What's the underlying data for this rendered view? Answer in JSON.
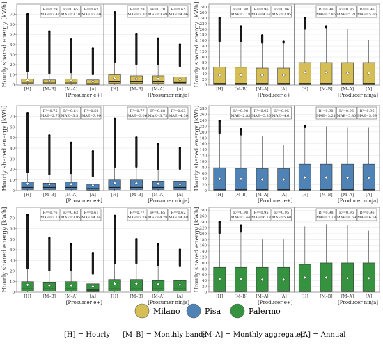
{
  "colors": {
    "Milano": "#D4BE55",
    "Pisa": "#4F82B5",
    "Palermo": "#35933F",
    "panel_border": "#888888",
    "grid": "#E3E3E3",
    "text": "#333333"
  },
  "ylabel": "Hourly shared energy [kWh]",
  "xticks": [
    "[H]",
    "[M–B]",
    "[M–A]",
    "[A]"
  ],
  "legend": {
    "cities": [
      "Milano",
      "Pisa",
      "Palermo"
    ],
    "abbreviations": [
      "[H] = Hourly",
      "[M–B] = Monthly bands",
      "[M–A] = Monthly aggregated",
      "[A] = Annual"
    ]
  },
  "chart_data": [
    {
      "type": "box",
      "city": "Milano",
      "group": "Prosumer",
      "ylim": [
        0,
        80
      ],
      "yticks": [
        0,
        10,
        20,
        30,
        40,
        50,
        60,
        70
      ],
      "panels": [
        {
          "label": "[Prosumer e+]",
          "stats": [
            [
              "R²=0.79",
              "MAE=2.42"
            ],
            [
              "R²=0.65",
              "MAE=3.10"
            ],
            [
              "R²=0.62",
              "MAE=3.60"
            ]
          ],
          "boxes": [
            {
              "q1": 1,
              "med": 2,
              "q3": 6,
              "whi": 13,
              "mean": 4.5,
              "max": 70
            },
            {
              "q1": 1,
              "med": 2,
              "q3": 5,
              "whi": 11,
              "mean": 4.0,
              "max": 53
            },
            {
              "q1": 1,
              "med": 2,
              "q3": 6,
              "whi": 12,
              "mean": 4.3,
              "max": 45
            },
            {
              "q1": 0.5,
              "med": 1.5,
              "q3": 5,
              "whi": 10,
              "mean": 3.5,
              "max": 36
            }
          ]
        },
        {
          "label": "[Prosumer ninja]",
          "stats": [
            [
              "R²=0.79",
              "MAE=2.83"
            ],
            [
              "R²=0.70",
              "MAE=3.49"
            ],
            [
              "R²=0.65",
              "MAE=4.06"
            ]
          ],
          "boxes": [
            {
              "q1": 1,
              "med": 3,
              "q3": 10,
              "whi": 22,
              "mean": 6.5,
              "max": 72
            },
            {
              "q1": 1,
              "med": 3,
              "q3": 9,
              "whi": 20,
              "mean": 6.0,
              "max": 50
            },
            {
              "q1": 1,
              "med": 3,
              "q3": 9,
              "whi": 20,
              "mean": 6.0,
              "max": 46
            },
            {
              "q1": 1,
              "med": 2.5,
              "q3": 8,
              "whi": 18,
              "mean": 5.5,
              "max": 40
            }
          ]
        }
      ]
    },
    {
      "type": "box",
      "city": "Milano",
      "group": "Producer",
      "ylim": [
        0,
        290
      ],
      "yticks": [
        0,
        20,
        40,
        60,
        80,
        100,
        120,
        140,
        160,
        180,
        200,
        220,
        240,
        260,
        280
      ],
      "panels": [
        {
          "label": "[Producer e+]",
          "stats": [
            [
              "R²=0.98",
              "MAE=2.18"
            ],
            [
              "R²=0.96",
              "MAE=4.67"
            ],
            [
              "R²=0.96",
              "MAE=3.95"
            ]
          ],
          "boxes": [
            {
              "q1": 2,
              "med": 3,
              "q3": 64,
              "whi": 155,
              "mean": 35,
              "max": 240
            },
            {
              "q1": 2,
              "med": 3,
              "q3": 63,
              "whi": 155,
              "mean": 36,
              "max": 210
            },
            {
              "q1": 2,
              "med": 3,
              "q3": 60,
              "whi": 150,
              "mean": 35,
              "max": 178
            },
            {
              "q1": 2,
              "med": 3,
              "q3": 60,
              "whi": 150,
              "mean": 35,
              "max": 155
            }
          ]
        },
        {
          "label": "[Producer ninja]",
          "stats": [
            [
              "R²=0.98",
              "MAE=2.86"
            ],
            [
              "R²=0.96",
              "MAE=5.21"
            ],
            [
              "R²=0.96",
              "MAE=5.06"
            ]
          ],
          "boxes": [
            {
              "q1": 2,
              "med": 3,
              "q3": 80,
              "whi": 200,
              "mean": 45,
              "max": 240
            },
            {
              "q1": 2,
              "med": 3,
              "q3": 80,
              "whi": 205,
              "mean": 45,
              "max": 210
            },
            {
              "q1": 2,
              "med": 3,
              "q3": 80,
              "whi": 200,
              "mean": 42,
              "max": 200
            },
            {
              "q1": 2,
              "med": 3,
              "q3": 80,
              "whi": 160,
              "mean": 42,
              "max": 160
            }
          ]
        }
      ]
    },
    {
      "type": "box",
      "city": "Pisa",
      "group": "Prosumer",
      "ylim": [
        0,
        80
      ],
      "yticks": [
        0,
        10,
        20,
        30,
        40,
        50,
        60,
        70
      ],
      "panels": [
        {
          "label": "[Prosumer e+]",
          "stats": [
            [
              "R²=0.75",
              "MAE=2.76"
            ],
            [
              "R²=0.64",
              "MAE=3.51"
            ],
            [
              "R²=0.62",
              "MAE=3.90"
            ]
          ],
          "boxes": [
            {
              "q1": 1,
              "med": 3,
              "q3": 8,
              "whi": 17,
              "mean": 6.5,
              "max": 73
            },
            {
              "q1": 1,
              "med": 3,
              "q3": 7,
              "whi": 15,
              "mean": 6.0,
              "max": 52
            },
            {
              "q1": 1,
              "med": 3,
              "q3": 8,
              "whi": 16,
              "mean": 6.0,
              "max": 45
            },
            {
              "q1": 0.5,
              "med": 2,
              "q3": 6,
              "whi": 13,
              "mean": 5.0,
              "max": 37
            }
          ]
        },
        {
          "label": "[Prosumer ninja]",
          "stats": [
            [
              "R²=0.77",
              "MAE=3.06"
            ],
            [
              "R²=0.68",
              "MAE=3.73"
            ],
            [
              "R²=0.63",
              "MAE=4.30"
            ]
          ],
          "boxes": [
            {
              "q1": 1,
              "med": 3,
              "q3": 10,
              "whi": 22,
              "mean": 7.0,
              "max": 68
            },
            {
              "q1": 1,
              "med": 3,
              "q3": 10,
              "whi": 22,
              "mean": 7.0,
              "max": 50
            },
            {
              "q1": 1,
              "med": 3,
              "q3": 9,
              "whi": 20,
              "mean": 6.5,
              "max": 44
            },
            {
              "q1": 1,
              "med": 3,
              "q3": 9,
              "whi": 20,
              "mean": 6.0,
              "max": 40
            }
          ]
        }
      ]
    },
    {
      "type": "box",
      "city": "Pisa",
      "group": "Producer",
      "ylim": [
        0,
        290
      ],
      "yticks": [
        0,
        20,
        40,
        60,
        80,
        100,
        120,
        140,
        160,
        180,
        200,
        220,
        240,
        260,
        280
      ],
      "panels": [
        {
          "label": "[Producer e+]",
          "stats": [
            [
              "R²=0.98",
              "MAE=2.83"
            ],
            [
              "R²=0.95",
              "MAE=5.36"
            ],
            [
              "R²=0.95",
              "MAE=4.61"
            ]
          ],
          "boxes": [
            {
              "q1": 2,
              "med": 3,
              "q3": 78,
              "whi": 195,
              "mean": 40,
              "max": 238
            },
            {
              "q1": 2,
              "med": 3,
              "q3": 76,
              "whi": 190,
              "mean": 40,
              "max": 210
            },
            {
              "q1": 2,
              "med": 3,
              "q3": 75,
              "whi": 185,
              "mean": 38,
              "max": 185
            },
            {
              "q1": 2,
              "med": 3,
              "q3": 75,
              "whi": 155,
              "mean": 38,
              "max": 155
            }
          ]
        },
        {
          "label": "[Producer ninja]",
          "stats": [
            [
              "R²=0.98",
              "MAE=3.21"
            ],
            [
              "R²=0.96",
              "MAE=5.80"
            ],
            [
              "R²=0.96",
              "MAE=5.69"
            ]
          ],
          "boxes": [
            {
              "q1": 2,
              "med": 3,
              "q3": 90,
              "whi": 215,
              "mean": 45,
              "max": 222
            },
            {
              "q1": 2,
              "med": 3,
              "q3": 90,
              "whi": 220,
              "mean": 45,
              "max": 220
            },
            {
              "q1": 2,
              "med": 3,
              "q3": 90,
              "whi": 215,
              "mean": 44,
              "max": 215
            },
            {
              "q1": 2,
              "med": 3,
              "q3": 90,
              "whi": 215,
              "mean": 44,
              "max": 215
            }
          ]
        }
      ]
    },
    {
      "type": "box",
      "city": "Palermo",
      "group": "Prosumer",
      "ylim": [
        0,
        80
      ],
      "yticks": [
        0,
        10,
        20,
        30,
        40,
        50,
        60,
        70
      ],
      "panels": [
        {
          "label": "[Prosumer e+]",
          "stats": [
            [
              "R²=0.76",
              "MAE=3.10"
            ],
            [
              "R²=0.63",
              "MAE=3.95"
            ],
            [
              "R²=0.61",
              "MAE=4.34"
            ]
          ],
          "boxes": [
            {
              "q1": 1,
              "med": 3,
              "q3": 10,
              "whi": 22,
              "mean": 7.0,
              "max": 73
            },
            {
              "q1": 1,
              "med": 3,
              "q3": 9,
              "whi": 20,
              "mean": 6.5,
              "max": 51
            },
            {
              "q1": 1,
              "med": 3,
              "q3": 10,
              "whi": 20,
              "mean": 6.5,
              "max": 45
            },
            {
              "q1": 0.5,
              "med": 2,
              "q3": 8,
              "whi": 17,
              "mean": 5.5,
              "max": 37
            }
          ]
        },
        {
          "label": "[Prosumer ninja]",
          "stats": [
            [
              "R²=0.77",
              "MAE=3.26"
            ],
            [
              "R²=0.65",
              "MAE=4.28"
            ],
            [
              "R²=0.62",
              "MAE=4.69"
            ]
          ],
          "boxes": [
            {
              "q1": 1,
              "med": 3,
              "q3": 12,
              "whi": 27,
              "mean": 8.0,
              "max": 72
            },
            {
              "q1": 1,
              "med": 3,
              "q3": 12,
              "whi": 27,
              "mean": 8.0,
              "max": 50
            },
            {
              "q1": 1,
              "med": 3,
              "q3": 11,
              "whi": 25,
              "mean": 7.5,
              "max": 45
            },
            {
              "q1": 1,
              "med": 3,
              "q3": 11,
              "whi": 24,
              "mean": 7.0,
              "max": 40
            }
          ]
        }
      ]
    },
    {
      "type": "box",
      "city": "Palermo",
      "group": "Producer",
      "ylim": [
        0,
        290
      ],
      "yticks": [
        0,
        20,
        40,
        60,
        80,
        100,
        120,
        140,
        160,
        180,
        200,
        220,
        240,
        260,
        280
      ],
      "panels": [
        {
          "label": "[Producer e+]",
          "stats": [
            [
              "R²=0.98",
              "MAE=3.44"
            ],
            [
              "R²=0.95",
              "MAE=6.18"
            ],
            [
              "R²=0.95",
              "MAE=5.60"
            ]
          ],
          "boxes": [
            {
              "q1": 2,
              "med": 3,
              "q3": 85,
              "whi": 200,
              "mean": 45,
              "max": 240
            },
            {
              "q1": 2,
              "med": 3,
              "q3": 85,
              "whi": 205,
              "mean": 45,
              "max": 228
            },
            {
              "q1": 2,
              "med": 3,
              "q3": 85,
              "whi": 180,
              "mean": 43,
              "max": 180
            },
            {
              "q1": 2,
              "med": 3,
              "q3": 85,
              "whi": 180,
              "mean": 43,
              "max": 180
            }
          ]
        },
        {
          "label": "[Producer ninja]",
          "stats": [
            [
              "R²=0.98",
              "MAE=3.78"
            ],
            [
              "R²=0.96",
              "MAE=6.69"
            ],
            [
              "R²=0.96",
              "MAE=6.54"
            ]
          ],
          "boxes": [
            {
              "q1": 2,
              "med": 3,
              "q3": 95,
              "whi": 225,
              "mean": 50,
              "max": 225
            },
            {
              "q1": 2,
              "med": 3,
              "q3": 100,
              "whi": 232,
              "mean": 50,
              "max": 232
            },
            {
              "q1": 2,
              "med": 3,
              "q3": 100,
              "whi": 230,
              "mean": 48,
              "max": 230
            },
            {
              "q1": 2,
              "med": 3,
              "q3": 100,
              "whi": 210,
              "mean": 48,
              "max": 210
            }
          ]
        }
      ]
    }
  ]
}
